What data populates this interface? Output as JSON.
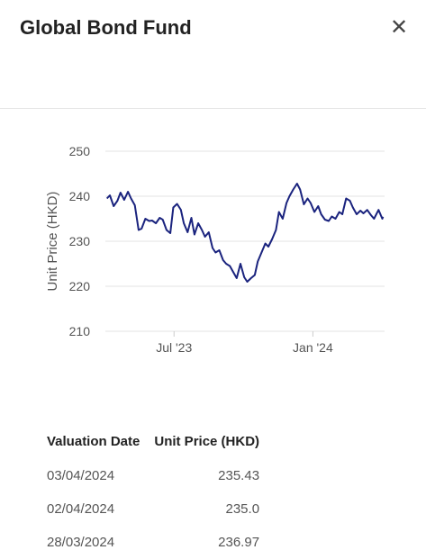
{
  "header": {
    "title": "Global Bond Fund",
    "close_label": "✕"
  },
  "chart_data": {
    "type": "line",
    "title": "",
    "xlabel": "",
    "ylabel": "Unit Price (HKD)",
    "ylim": [
      210,
      250
    ],
    "yticks": [
      250,
      240,
      230,
      220,
      210
    ],
    "xticks": [
      {
        "date": "2023-07-01",
        "label": "Jul '23"
      },
      {
        "date": "2024-01-01",
        "label": "Jan '24"
      }
    ],
    "xrange": [
      "2023-04-01",
      "2024-04-05"
    ],
    "grid": true,
    "legend": "none",
    "color": "#1a237e",
    "series": [
      {
        "x": [
          "2023-04-03",
          "2023-04-07",
          "2023-04-12",
          "2023-04-17",
          "2023-04-21",
          "2023-04-26",
          "2023-05-01",
          "2023-05-05",
          "2023-05-10",
          "2023-05-15",
          "2023-05-19",
          "2023-05-24",
          "2023-05-29",
          "2023-06-02",
          "2023-06-07",
          "2023-06-12",
          "2023-06-16",
          "2023-06-21",
          "2023-06-26",
          "2023-06-30",
          "2023-07-05",
          "2023-07-10",
          "2023-07-14",
          "2023-07-19",
          "2023-07-24",
          "2023-07-28",
          "2023-08-02",
          "2023-08-07",
          "2023-08-11",
          "2023-08-16",
          "2023-08-21",
          "2023-08-25",
          "2023-08-30",
          "2023-09-04",
          "2023-09-08",
          "2023-09-13",
          "2023-09-18",
          "2023-09-22",
          "2023-09-27",
          "2023-10-02",
          "2023-10-06",
          "2023-10-11",
          "2023-10-16",
          "2023-10-20",
          "2023-10-25",
          "2023-10-30",
          "2023-11-03",
          "2023-11-08",
          "2023-11-13",
          "2023-11-17",
          "2023-11-22",
          "2023-11-27",
          "2023-12-01",
          "2023-12-06",
          "2023-12-11",
          "2023-12-15",
          "2023-12-20",
          "2023-12-25",
          "2023-12-29",
          "2024-01-03",
          "2024-01-08",
          "2024-01-12",
          "2024-01-17",
          "2024-01-22",
          "2024-01-26",
          "2024-01-31",
          "2024-02-05",
          "2024-02-09",
          "2024-02-14",
          "2024-02-19",
          "2024-02-23",
          "2024-02-28",
          "2024-03-04",
          "2024-03-08",
          "2024-03-13",
          "2024-03-18",
          "2024-03-22",
          "2024-03-28",
          "2024-04-02",
          "2024-04-03"
        ],
        "values": [
          239.5,
          240.2,
          237.8,
          239.0,
          240.8,
          239.2,
          241.0,
          239.5,
          238.0,
          232.5,
          232.8,
          235.0,
          234.5,
          234.6,
          234.0,
          235.2,
          234.8,
          232.5,
          231.8,
          237.5,
          238.3,
          237.0,
          234.0,
          232.0,
          235.2,
          231.5,
          234.0,
          232.5,
          231.0,
          232.0,
          228.5,
          227.5,
          228.0,
          225.8,
          225.0,
          224.5,
          223.0,
          221.8,
          225.0,
          222.0,
          221.0,
          221.8,
          222.5,
          225.5,
          227.5,
          229.5,
          228.8,
          230.5,
          232.5,
          236.5,
          235.0,
          238.5,
          240.0,
          241.5,
          242.8,
          241.5,
          238.2,
          239.5,
          238.5,
          236.5,
          237.8,
          236.0,
          234.8,
          234.5,
          235.5,
          235.0,
          236.5,
          236.0,
          239.5,
          239.0,
          237.5,
          236.0,
          236.8,
          236.2,
          236.97,
          235.8,
          235.0,
          236.97,
          235.0,
          235.43
        ]
      }
    ]
  },
  "table": {
    "headers": {
      "date": "Valuation Date",
      "price": "Unit Price (HKD)"
    },
    "rows": [
      {
        "date": "03/04/2024",
        "price": "235.43"
      },
      {
        "date": "02/04/2024",
        "price": "235.0"
      },
      {
        "date": "28/03/2024",
        "price": "236.97"
      }
    ]
  }
}
